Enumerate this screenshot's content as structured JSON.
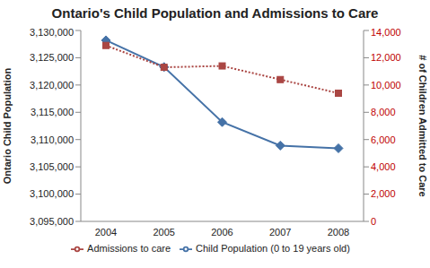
{
  "chart_data": {
    "type": "line",
    "title": "Ontario's Child Population and Admissions to Care",
    "categories": [
      "2004",
      "2005",
      "2006",
      "2007",
      "2008"
    ],
    "y_label": "Ontario Child Population",
    "y2_label": "# of Children Admitted to Care",
    "ylim": [
      3095000,
      3130000
    ],
    "yticks": [
      {
        "value": 3095000,
        "label": "3,095,000"
      },
      {
        "value": 3100000,
        "label": "3,100,000"
      },
      {
        "value": 3105000,
        "label": "3,105,000"
      },
      {
        "value": 3110000,
        "label": "3,110,000"
      },
      {
        "value": 3115000,
        "label": "3,115,000"
      },
      {
        "value": 3120000,
        "label": "3,120,000"
      },
      {
        "value": 3125000,
        "label": "3,125,000"
      },
      {
        "value": 3130000,
        "label": "3,130,000"
      }
    ],
    "y2lim": [
      0,
      14000
    ],
    "y2ticks": [
      0,
      {
        "value": 2000,
        "label": "2,000"
      },
      {
        "value": 4000,
        "label": "4,000"
      },
      {
        "value": 6000,
        "label": "6,000"
      },
      {
        "value": 8000,
        "label": "8,000"
      },
      {
        "value": 10000,
        "label": "10,000"
      },
      {
        "value": 12000,
        "label": "12,000"
      },
      {
        "value": 14000,
        "label": "14,000"
      }
    ],
    "grid": false,
    "legend": "bottom",
    "series": [
      {
        "name": "Child Population (0 to 19 years old)",
        "color": "#4572a7",
        "marker": "diamond",
        "line_style": "solid",
        "values": [
          3128200,
          3123300,
          3113200,
          3108900,
          3108400
        ]
      },
      {
        "name": "Admissions to care",
        "color": "#aa4643",
        "marker": "square",
        "line_style": "dotted",
        "axis": "y2",
        "values": [
          12900,
          11300,
          11400,
          10400,
          9400
        ]
      }
    ]
  }
}
